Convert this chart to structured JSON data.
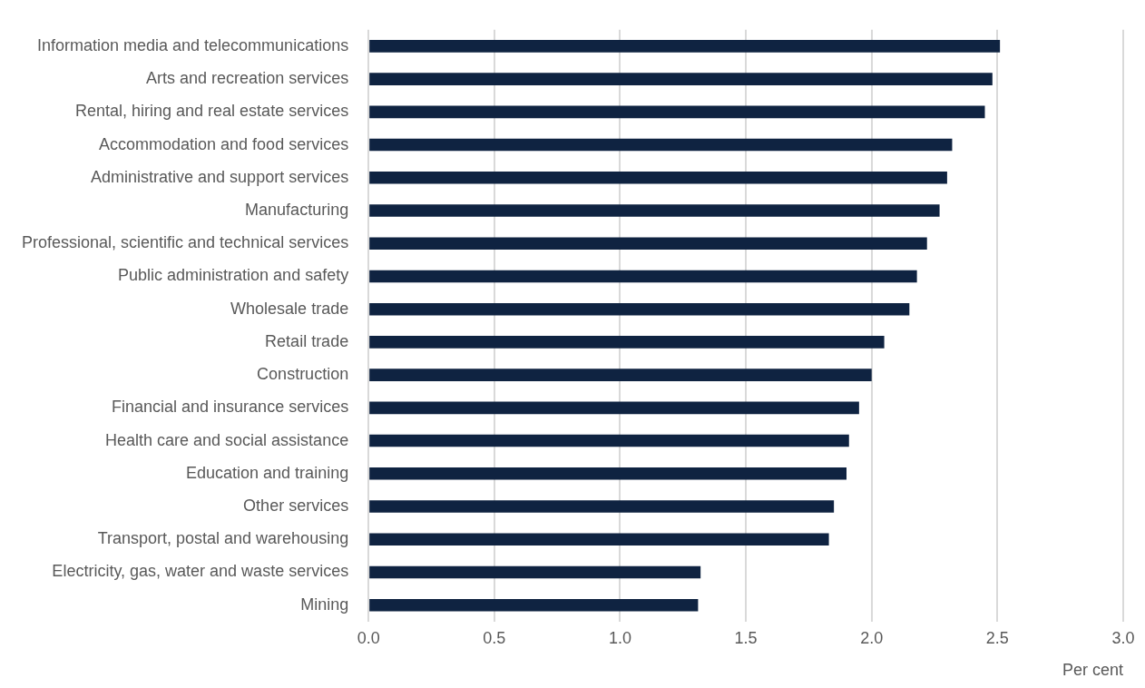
{
  "chart_data": {
    "type": "bar",
    "orientation": "horizontal",
    "categories": [
      "Information media and telecommunications",
      "Arts and recreation services",
      "Rental, hiring and real estate services",
      "Accommodation and food services",
      "Administrative and support services",
      "Manufacturing",
      "Professional, scientific and technical services",
      "Public administration and safety",
      "Wholesale trade",
      "Retail trade",
      "Construction",
      "Financial and insurance services",
      "Health care and social assistance",
      "Education and training",
      "Other services",
      "Transport, postal and warehousing",
      "Electricity, gas, water and waste services",
      "Mining"
    ],
    "values": [
      2.51,
      2.48,
      2.45,
      2.32,
      2.3,
      2.27,
      2.22,
      2.18,
      2.15,
      2.05,
      2.0,
      1.95,
      1.91,
      1.9,
      1.85,
      1.83,
      1.32,
      1.31
    ],
    "color": "#0f2341",
    "xlabel": "Per cent",
    "xlim": [
      0,
      3
    ],
    "xticks": [
      {
        "value": 0,
        "label": "0.0"
      },
      {
        "value": 0.5,
        "label": "0.5"
      },
      {
        "value": 1,
        "label": "1.0"
      },
      {
        "value": 1.5,
        "label": "1.5"
      },
      {
        "value": 2,
        "label": "2.0"
      },
      {
        "value": 2.5,
        "label": "2.5"
      },
      {
        "value": 3,
        "label": "3.0"
      }
    ],
    "grid": "x"
  }
}
